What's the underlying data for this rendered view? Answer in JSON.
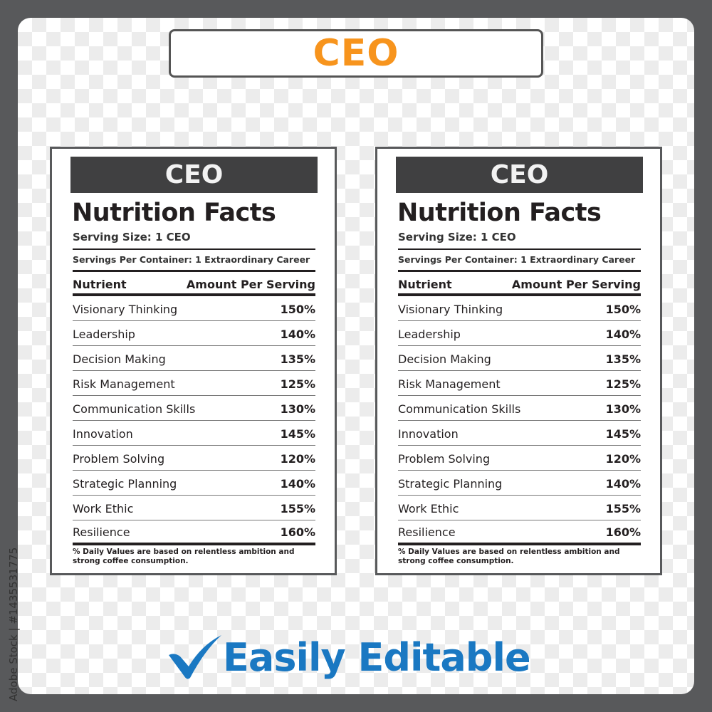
{
  "title": "CEO",
  "label": {
    "header": "CEO",
    "heading": "Nutrition Facts",
    "serving_size": "Serving Size: 1 CEO",
    "servings_per_container": "Servings Per Container: 1 Extraordinary Career",
    "col_nutrient": "Nutrient",
    "col_amount": "Amount Per Serving",
    "rows": [
      {
        "name": "Visionary Thinking",
        "value": "150%"
      },
      {
        "name": "Leadership",
        "value": "140%"
      },
      {
        "name": "Decision Making",
        "value": "135%"
      },
      {
        "name": "Risk Management",
        "value": "125%"
      },
      {
        "name": "Communication Skills",
        "value": "130%"
      },
      {
        "name": "Innovation",
        "value": "145%"
      },
      {
        "name": "Problem Solving",
        "value": "120%"
      },
      {
        "name": "Strategic Planning",
        "value": "140%"
      },
      {
        "name": "Work Ethic",
        "value": "155%"
      },
      {
        "name": "Resilience",
        "value": "160%"
      }
    ],
    "footnote": "% Daily Values are based on relentless ambition and strong coffee consumption."
  },
  "tagline": "Easily Editable",
  "watermark": "Adobe Stock | #1435531775",
  "colors": {
    "title": "#f7941d",
    "tagline": "#1a78c2",
    "frame": "#58595b",
    "header_bar": "#404041"
  }
}
